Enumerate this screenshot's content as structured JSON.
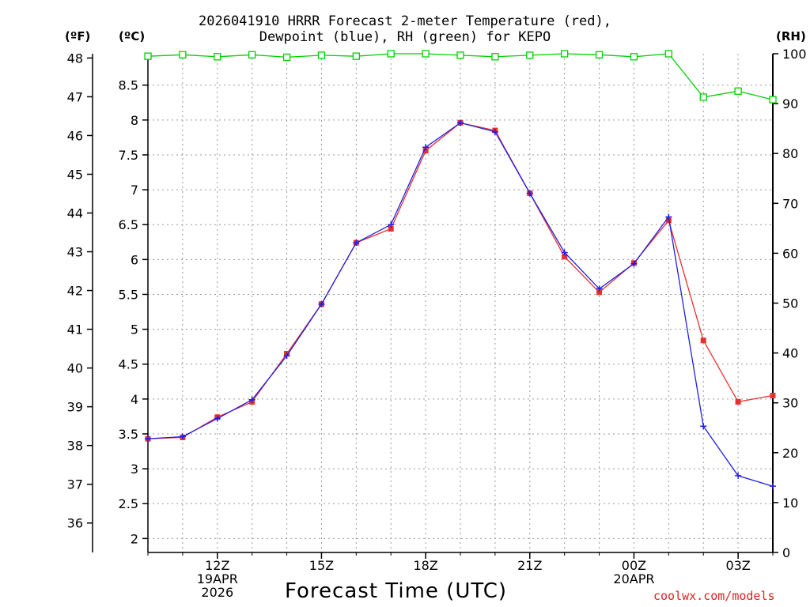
{
  "chart_data": {
    "type": "line",
    "title": "2026041910 HRRR Forecast 2-meter Temperature (red),",
    "subtitle": "Dewpoint (blue), RH (green) for KEPO",
    "xlabel": "Forecast Time (UTC)",
    "credit": "coolwx.com/models",
    "units": {
      "fahrenheit": "(ºF)",
      "celsius": "(ºC)",
      "rh": "(RH)"
    },
    "x_hours": [
      10,
      11,
      12,
      13,
      14,
      15,
      16,
      17,
      18,
      19,
      20,
      21,
      22,
      23,
      24,
      25,
      26,
      27,
      28
    ],
    "xlim": [
      10,
      28
    ],
    "x_ticks": [
      {
        "hour": 12,
        "lines": [
          "12Z",
          "19APR",
          "2026"
        ]
      },
      {
        "hour": 15,
        "lines": [
          "15Z"
        ]
      },
      {
        "hour": 18,
        "lines": [
          "18Z"
        ]
      },
      {
        "hour": 21,
        "lines": [
          "21Z"
        ]
      },
      {
        "hour": 24,
        "lines": [
          "00Z",
          "20APR"
        ]
      },
      {
        "hour": 27,
        "lines": [
          "03Z"
        ]
      }
    ],
    "celsius_axis": {
      "min": 1.8,
      "max": 8.95,
      "ticks": [
        2,
        2.5,
        3,
        3.5,
        4,
        4.5,
        5,
        5.5,
        6,
        6.5,
        7,
        7.5,
        8,
        8.5
      ]
    },
    "fahrenheit_axis": {
      "ticks": [
        36,
        37,
        38,
        39,
        40,
        41,
        42,
        43,
        44,
        45,
        46,
        47,
        48
      ]
    },
    "rh_axis": {
      "min": 0,
      "max": 100,
      "ticks": [
        0,
        10,
        20,
        30,
        40,
        50,
        60,
        70,
        80,
        90,
        100
      ]
    },
    "series": [
      {
        "name": "Temperature",
        "axis": "celsius",
        "color": "#e83030",
        "marker": "square",
        "values": [
          3.43,
          3.45,
          3.74,
          3.96,
          4.65,
          5.36,
          6.24,
          6.44,
          7.56,
          7.96,
          7.85,
          6.95,
          6.04,
          5.53,
          5.95,
          6.56,
          4.84,
          3.96,
          4.05
        ]
      },
      {
        "name": "Dewpoint",
        "axis": "celsius",
        "color": "#2020e0",
        "marker": "plus",
        "values": [
          3.43,
          3.46,
          3.72,
          3.99,
          4.62,
          5.36,
          6.24,
          6.5,
          7.61,
          7.96,
          7.83,
          6.95,
          6.1,
          5.58,
          5.94,
          6.61,
          3.61,
          2.9,
          2.75
        ]
      },
      {
        "name": "RH",
        "axis": "rh",
        "color": "#00d000",
        "marker": "open-square",
        "values": [
          99.5,
          99.8,
          99.4,
          99.8,
          99.3,
          99.7,
          99.5,
          100,
          100,
          99.7,
          99.4,
          99.7,
          100,
          99.8,
          99.4,
          100,
          91.3,
          92.5,
          90.8
        ]
      }
    ]
  }
}
